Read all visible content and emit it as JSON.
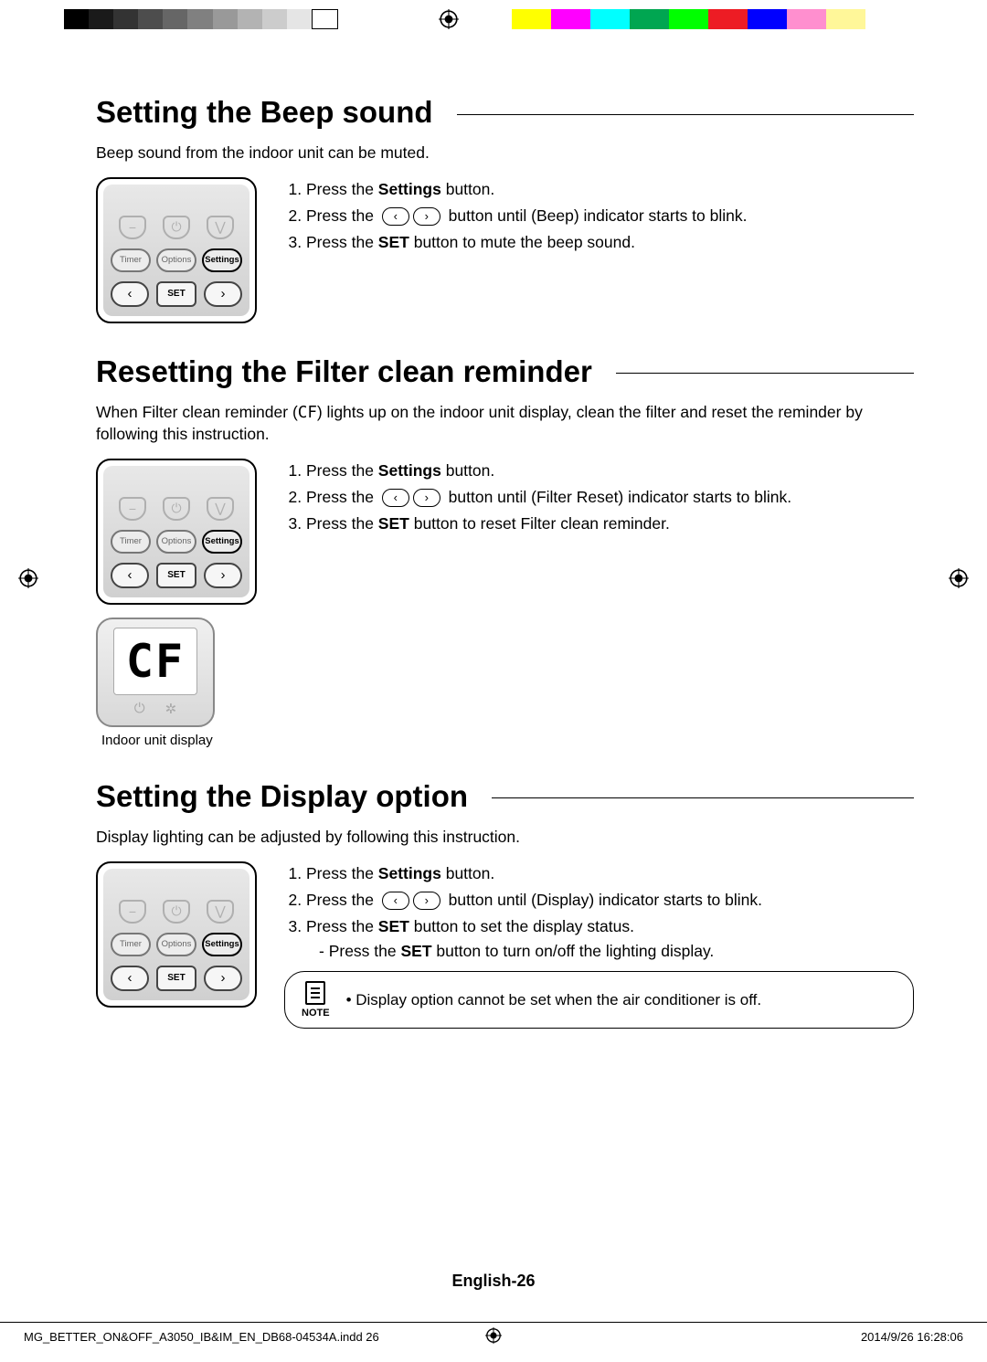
{
  "registration": {
    "grayscale": [
      "#000000",
      "#1a1a1a",
      "#333333",
      "#4d4d4d",
      "#666666",
      "#808080",
      "#999999",
      "#b3b3b3",
      "#cccccc",
      "#e5e5e5",
      "#ffffff"
    ],
    "colors": [
      "#ffff00",
      "#ff00ff",
      "#00ffff",
      "#00a651",
      "#00ff00",
      "#ed1c24",
      "#0000ff",
      "#ff8fcf",
      "#fff799",
      "#ffffff"
    ]
  },
  "remote": {
    "buttons": {
      "timer": "Timer",
      "options": "Options",
      "settings": "Settings",
      "set": "SET"
    }
  },
  "section1": {
    "title": "Setting the Beep sound",
    "intro": "Beep sound from the indoor unit can be muted.",
    "step1_a": "Press the ",
    "step1_b": "Settings",
    "step1_c": " button.",
    "step2_a": "Press the ",
    "step2_b": " button until (Beep) indicator starts to blink.",
    "step3_a": "Press the ",
    "step3_b": "SET",
    "step3_c": " button to mute the beep sound."
  },
  "section2": {
    "title": "Resetting the Filter clean reminder",
    "intro_a": "When Filter clean reminder (",
    "intro_cf": "CF",
    "intro_b": ") lights up on the indoor unit display, clean the filter and reset the reminder by following this instruction.",
    "step1_a": "Press the ",
    "step1_b": "Settings",
    "step1_c": " button.",
    "step2_a": "Press the ",
    "step2_b": " button until (Filter Reset) indicator starts to blink.",
    "step3_a": "Press the ",
    "step3_b": "SET",
    "step3_c": " button to reset Filter clean reminder.",
    "display_text": "CF",
    "display_label": "Indoor unit display"
  },
  "section3": {
    "title": "Setting the Display option",
    "intro": "Display lighting can be adjusted by following this instruction.",
    "step1_a": "Press the ",
    "step1_b": "Settings",
    "step1_c": " button.",
    "step2_a": "Press the ",
    "step2_b": " button until (Display) indicator starts to blink.",
    "step3_a": "Press the ",
    "step3_b": "SET",
    "step3_c": " button to set the display status.",
    "sub_a": "- Press the ",
    "sub_b": "SET",
    "sub_c": " button to turn on/off the lighting display.",
    "note_label": "NOTE",
    "note_text": "Display option cannot be set when the air conditioner is off."
  },
  "footer": {
    "page": "English-26",
    "file": "MG_BETTER_ON&OFF_A3050_IB&IM_EN_DB68-04534A.indd   26",
    "date": "2014/9/26   16:28:06"
  }
}
